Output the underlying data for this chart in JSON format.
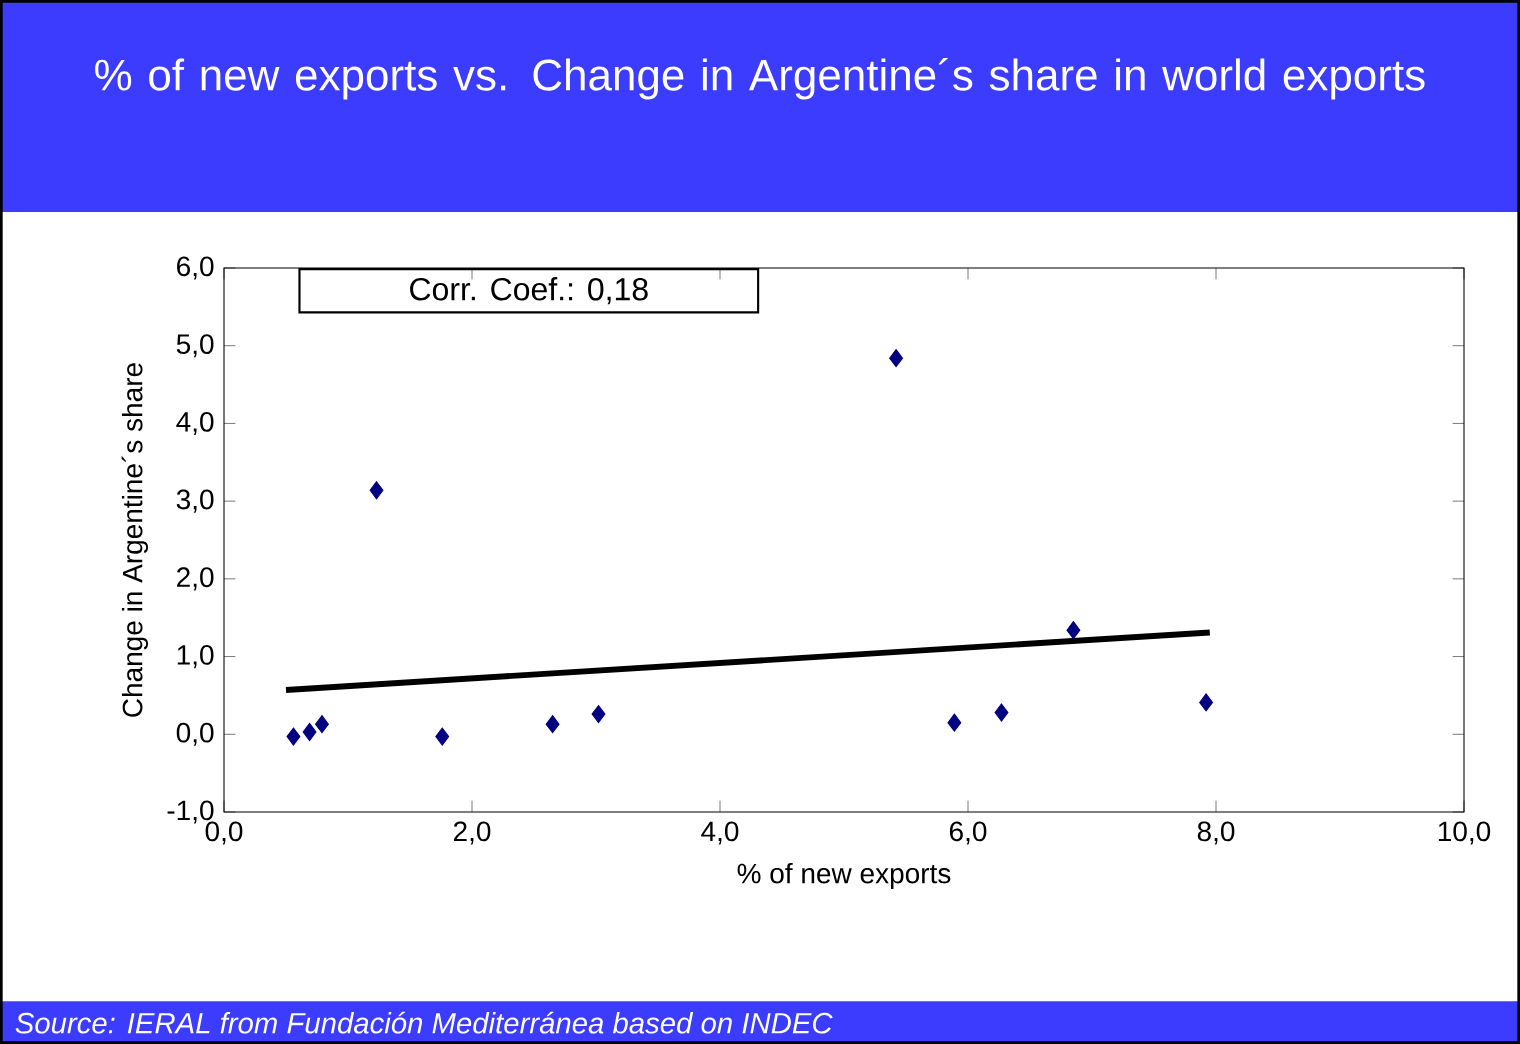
{
  "chart_data": {
    "type": "scatter",
    "title": "% of new exports vs. Change in Argentine´s share in world exports",
    "xlabel": "% of new exports",
    "ylabel": "Change in Argentine´s share",
    "annotations": [
      "Corr. Coef.: 0,18",
      "Source: IERAL from Fundación Mediterránea based on INDEC"
    ],
    "xlim": [
      0,
      10
    ],
    "ylim": [
      -1,
      6
    ],
    "xticks": [
      {
        "value": 0,
        "label": "0,0"
      },
      {
        "value": 2,
        "label": "2,0"
      },
      {
        "value": 4,
        "label": "4,0"
      },
      {
        "value": 6,
        "label": "6,0"
      },
      {
        "value": 8,
        "label": "8,0"
      },
      {
        "value": 10,
        "label": "10,0"
      }
    ],
    "yticks": [
      {
        "value": -1,
        "label": "-1,0"
      },
      {
        "value": 0,
        "label": "0,0"
      },
      {
        "value": 1,
        "label": "1,0"
      },
      {
        "value": 2,
        "label": "2,0"
      },
      {
        "value": 3,
        "label": "3,0"
      },
      {
        "value": 4,
        "label": "4,0"
      },
      {
        "value": 5,
        "label": "5,0"
      },
      {
        "value": 6,
        "label": "6,0"
      }
    ],
    "grid": false,
    "series": [
      {
        "type": "scatter",
        "color": "#000080",
        "marker": "diamond",
        "x": [
          0.56,
          0.69,
          0.79,
          1.23,
          1.76,
          2.65,
          3.02,
          5.42,
          5.89,
          6.27,
          6.85,
          7.92
        ],
        "values": [
          -0.03,
          0.03,
          0.13,
          3.14,
          -0.03,
          0.13,
          0.26,
          4.84,
          0.15,
          0.28,
          1.34,
          0.41
        ]
      },
      {
        "type": "line",
        "color": "#000000",
        "marker": "none",
        "line_style": "solid",
        "x": [
          0.5,
          7.95
        ],
        "values": [
          0.57,
          1.31
        ]
      }
    ]
  }
}
